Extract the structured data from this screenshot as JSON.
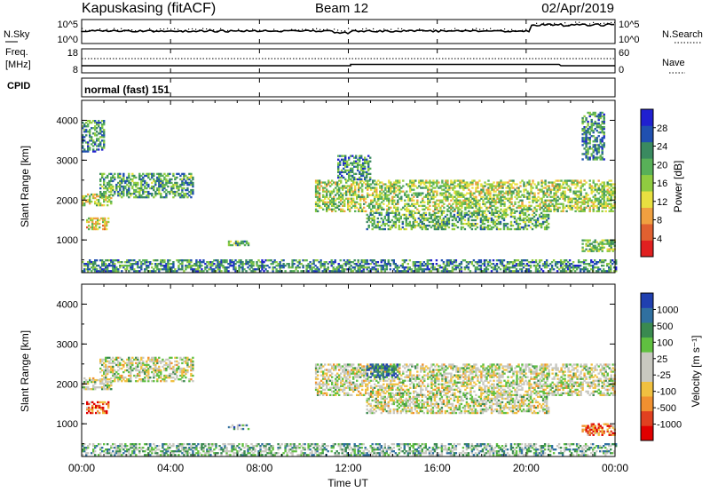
{
  "header": {
    "station": "Kapuskasing (fitACF)",
    "beam": "Beam 12",
    "date": "02/Apr/2019"
  },
  "top_panels": {
    "nsky_label": "N.Sky",
    "nsearch_label": "N.Search",
    "noise_ticks": [
      "10^5",
      "10^0"
    ],
    "freq_label": "Freq.",
    "freq_unit": "[MHz]",
    "freq_ticks": [
      "18",
      "8"
    ],
    "nave_label": "Nave",
    "nave_ticks": [
      "60",
      "0"
    ],
    "cpid_label": "CPID",
    "cpid_value": "normal (fast) 151"
  },
  "time_axis": {
    "label": "Time UT",
    "ticks": [
      "00:00",
      "04:00",
      "08:00",
      "12:00",
      "16:00",
      "20:00",
      "00:00"
    ],
    "range_hours": [
      0,
      24
    ]
  },
  "chart_data": [
    {
      "type": "heatmap",
      "panel": "power",
      "ylabel": "Slant Range [km]",
      "yticks": [
        "4000",
        "3000",
        "2000",
        "1000"
      ],
      "ylim": [
        180,
        4500
      ],
      "colorbar_label": "Power [dB]",
      "colorbar_ticks": [
        "28",
        "24",
        "20",
        "16",
        "12",
        "8",
        "4"
      ],
      "colorbar_colors": [
        "#2020d0",
        "#2050b0",
        "#3a8a60",
        "#58b058",
        "#90cc40",
        "#e8e040",
        "#f0a040",
        "#e06030",
        "#e02020"
      ],
      "bands": [
        {
          "t0": 0.0,
          "t1": 1.3,
          "r0": 1850,
          "r1": 2150,
          "level": 0.55
        },
        {
          "t0": 0.8,
          "t1": 5.0,
          "r0": 2050,
          "r1": 2650,
          "level": 0.35
        },
        {
          "t0": 0.2,
          "t1": 1.2,
          "r0": 1250,
          "r1": 1550,
          "level": 0.6
        },
        {
          "t0": 0.0,
          "t1": 1.0,
          "r0": 3200,
          "r1": 4000,
          "level": 0.3
        },
        {
          "t0": 6.5,
          "t1": 7.5,
          "r0": 850,
          "r1": 980,
          "level": 0.4
        },
        {
          "t0": 0.0,
          "t1": 24.0,
          "r0": 200,
          "r1": 480,
          "level": 0.3
        },
        {
          "t0": 10.5,
          "t1": 24.0,
          "r0": 1700,
          "r1": 2500,
          "level": 0.5
        },
        {
          "t0": 12.8,
          "t1": 21.0,
          "r0": 1250,
          "r1": 1700,
          "level": 0.4
        },
        {
          "t0": 11.5,
          "t1": 13.0,
          "r0": 2500,
          "r1": 3100,
          "level": 0.3
        },
        {
          "t0": 22.5,
          "t1": 24.0,
          "r0": 700,
          "r1": 1000,
          "level": 0.45
        },
        {
          "t0": 22.5,
          "t1": 23.5,
          "r0": 3000,
          "r1": 4200,
          "level": 0.3
        }
      ]
    },
    {
      "type": "heatmap",
      "panel": "velocity",
      "ylabel": "Slant Range [km]",
      "yticks": [
        "4000",
        "3000",
        "2000",
        "1000"
      ],
      "ylim": [
        180,
        4500
      ],
      "colorbar_label": "Velocity [m s⁻¹]",
      "colorbar_ticks": [
        "1000",
        "500",
        "100",
        "25",
        "-25",
        "-100",
        "-500",
        "-1000"
      ],
      "colorbar_colors": [
        "#2040b0",
        "#3070a0",
        "#3a8a50",
        "#60c040",
        "#c8c8c0",
        "#c8c8c0",
        "#f0c040",
        "#f09030",
        "#e04020",
        "#e00000"
      ],
      "bands": [
        {
          "t0": 0.0,
          "t1": 1.3,
          "r0": 1850,
          "r1": 2150,
          "level": 0.5
        },
        {
          "t0": 0.8,
          "t1": 5.0,
          "r0": 2050,
          "r1": 2650,
          "level": 0.5
        },
        {
          "t0": 0.2,
          "t1": 1.2,
          "r0": 1250,
          "r1": 1550,
          "level": 0.8
        },
        {
          "t0": 6.5,
          "t1": 7.5,
          "r0": 850,
          "r1": 980,
          "level": 0.3
        },
        {
          "t0": 0.0,
          "t1": 24.0,
          "r0": 200,
          "r1": 480,
          "level": 0.35
        },
        {
          "t0": 10.5,
          "t1": 24.0,
          "r0": 1700,
          "r1": 2500,
          "level": 0.5
        },
        {
          "t0": 12.8,
          "t1": 21.0,
          "r0": 1250,
          "r1": 1700,
          "level": 0.5
        },
        {
          "t0": 12.8,
          "t1": 14.2,
          "r0": 2150,
          "r1": 2500,
          "level": 0.15
        },
        {
          "t0": 22.5,
          "t1": 24.0,
          "r0": 700,
          "r1": 1000,
          "level": 0.8
        }
      ]
    }
  ]
}
